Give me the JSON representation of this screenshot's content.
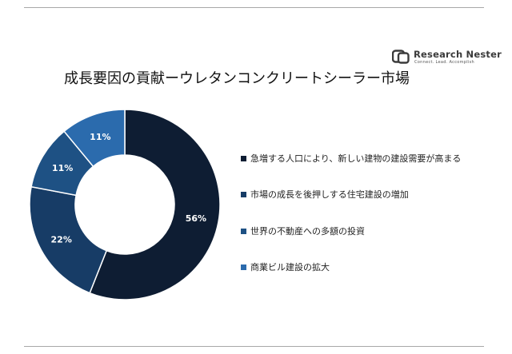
{
  "title": "成長要因の貢献ーウレタンコンクリートシーラー市場",
  "logo": {
    "icon": "research-nester-logo-icon",
    "name": "Research Nester",
    "tagline": "Connect. Lead. Accomplish"
  },
  "chart_data": {
    "type": "pie",
    "variant": "donut",
    "title": "成長要因の貢献ーウレタンコンクリートシーラー市場",
    "categories": [
      "急増する人口により、新しい建物の建設需要が高まる",
      "市場の成長を後押しする住宅建設の増加",
      "世界の不動産への多額の投資",
      "商業ビル建設の拡大"
    ],
    "values": [
      56,
      22,
      11,
      11
    ],
    "value_labels": [
      "56%",
      "22%",
      "11%",
      "11%"
    ],
    "colors": [
      "#0e1d33",
      "#173c66",
      "#1e5184",
      "#2b6bad"
    ],
    "legend_position": "right"
  }
}
